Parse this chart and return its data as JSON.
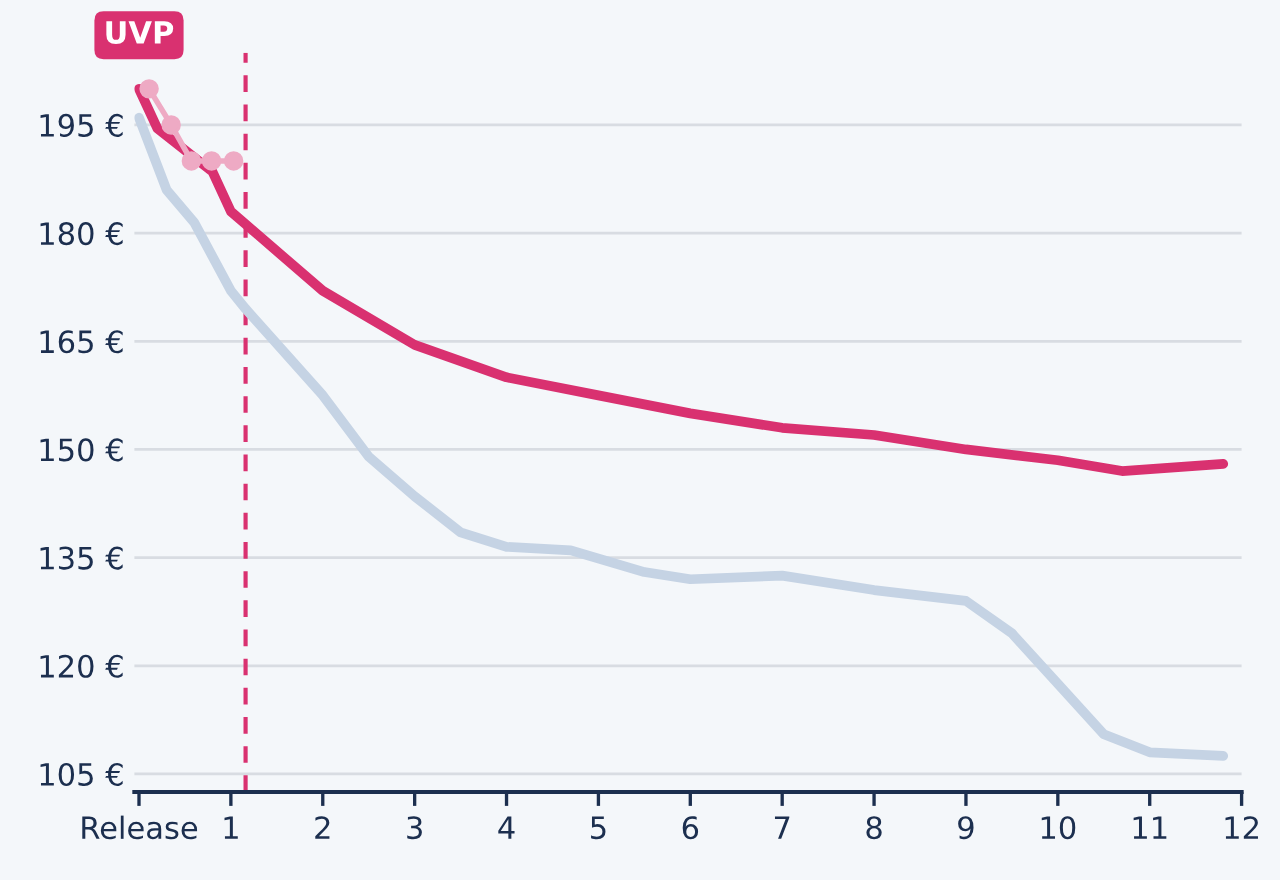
{
  "chart_data": {
    "type": "line",
    "series": [
      {
        "color": "#c5d3e4",
        "x": [
          0,
          0.3,
          0.6,
          1,
          1.16,
          2,
          2.5,
          3,
          3.5,
          4,
          4.7,
          5.5,
          6,
          7,
          8,
          9,
          9.5,
          10,
          10.5,
          11,
          11.8
        ],
        "values": [
          196,
          186,
          181.5,
          172,
          169.5,
          157.5,
          149,
          143.5,
          138.5,
          136.5,
          136,
          133,
          132,
          132.5,
          130.5,
          129,
          124.5,
          117.5,
          110.5,
          108,
          107.5
        ]
      },
      {
        "color": "#d93170",
        "x": [
          0,
          0.2,
          0.5,
          0.8,
          1,
          2,
          3,
          4,
          5,
          6,
          7,
          8,
          9,
          10,
          10.7,
          11.8
        ],
        "values": [
          200,
          194.5,
          191.5,
          188.5,
          183,
          172,
          164.5,
          160,
          157.5,
          155,
          153,
          152,
          150,
          148.5,
          147,
          148
        ]
      },
      {
        "color": "#eeaac4",
        "marker": "circle",
        "x": [
          0.11,
          0.35,
          0.57,
          0.79,
          1.03
        ],
        "values": [
          200,
          195,
          190,
          190,
          190
        ]
      }
    ],
    "xlim": [
      -0.05,
      12
    ],
    "ylim": [
      102.5,
      205
    ],
    "xticks": [
      {
        "value": 0,
        "label": "Release"
      },
      1,
      2,
      3,
      4,
      5,
      6,
      7,
      8,
      9,
      10,
      11,
      12
    ],
    "yticks": [
      {
        "value": 105,
        "label": "105 €"
      },
      {
        "value": 120,
        "label": "120 €"
      },
      {
        "value": 135,
        "label": "135 €"
      },
      {
        "value": 150,
        "label": "150 €"
      },
      {
        "value": 165,
        "label": "165 €"
      },
      {
        "value": 180,
        "label": "180 €"
      },
      {
        "value": 195,
        "label": "195 €"
      }
    ],
    "grid": "y",
    "ref_lines": [
      {
        "axis": "x",
        "value": 1.16,
        "color": "#d93170",
        "line_style": "dashed"
      }
    ],
    "annotations": [
      {
        "text": "UVP",
        "x": 0,
        "y": 200
      }
    ]
  }
}
